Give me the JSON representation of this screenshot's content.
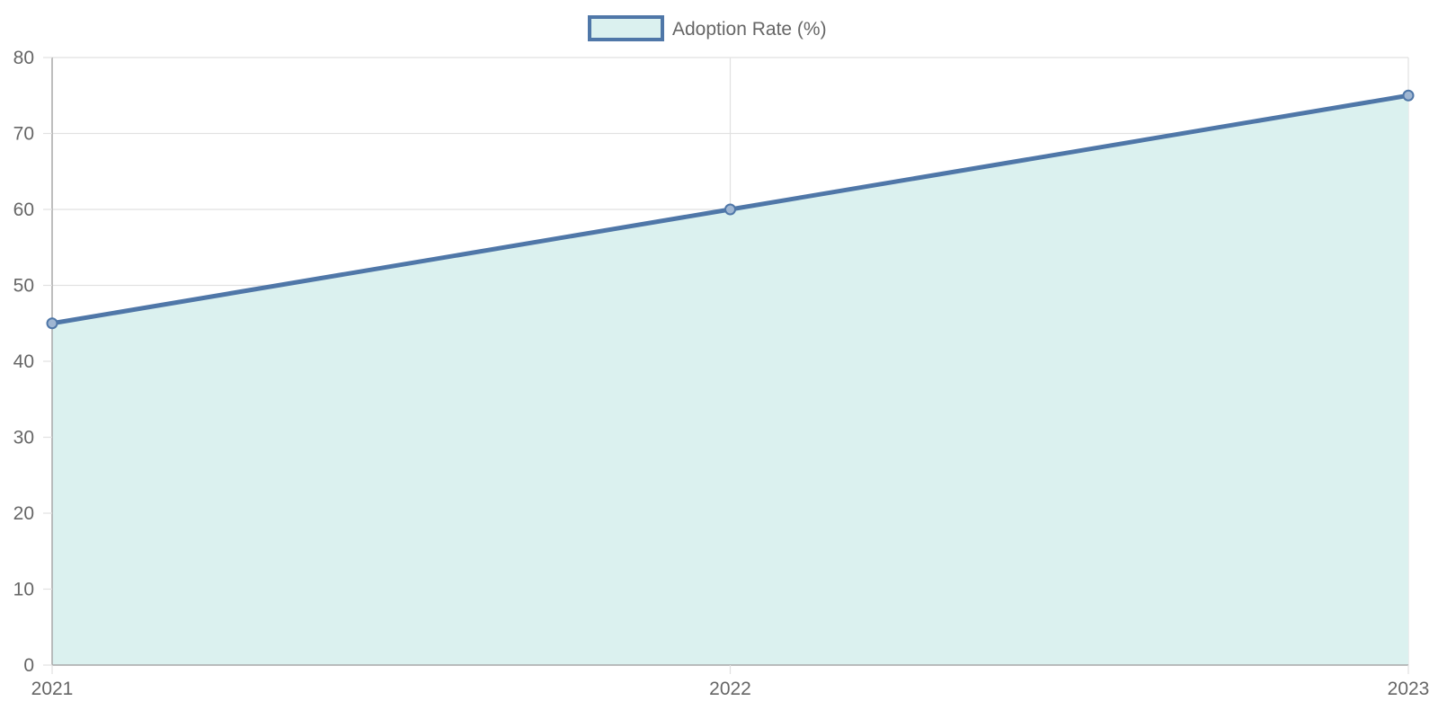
{
  "chart_data": {
    "type": "area",
    "x": [
      "2021",
      "2022",
      "2023"
    ],
    "series": [
      {
        "name": "Adoption Rate (%)",
        "values": [
          45,
          60,
          75
        ]
      }
    ],
    "ylim": [
      0,
      80
    ],
    "yticks": [
      0,
      10,
      20,
      30,
      40,
      50,
      60,
      70,
      80
    ],
    "grid": true,
    "legend": "top-center",
    "colors": {
      "line": "#4f77a8",
      "fill": "#dbf1ef",
      "grid": "#e1e1e1",
      "axis": "#a8a8a8"
    }
  }
}
